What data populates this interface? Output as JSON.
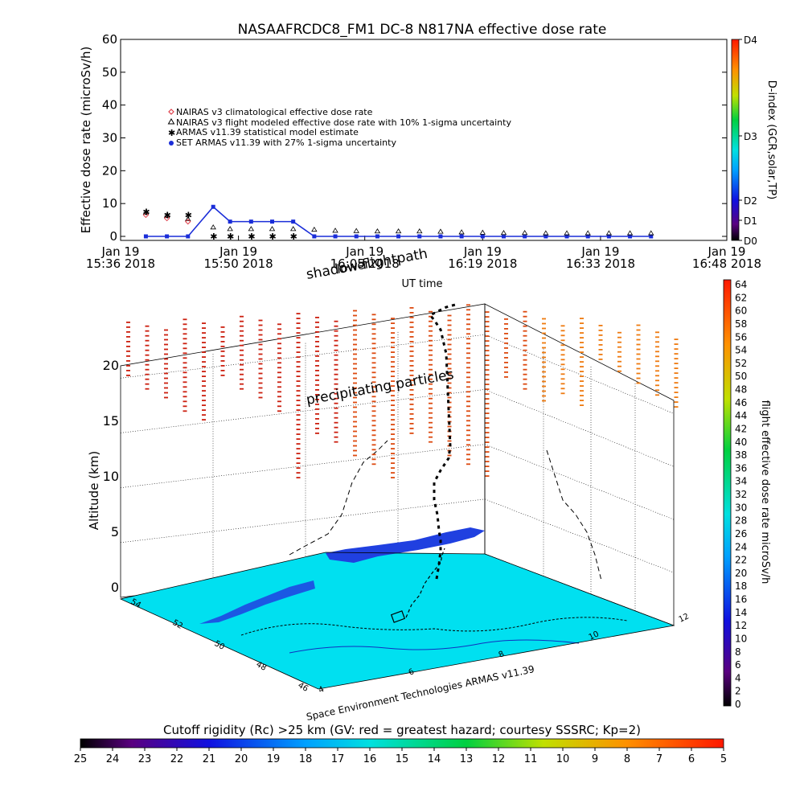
{
  "top_chart": {
    "title": "NASAAFRCDC8_FM1 DC-8    N817NA effective dose rate",
    "ylabel": "Effective dose rate (microSv/h)",
    "xlabel": "UT time",
    "ylim": [
      0,
      60
    ],
    "yticks": [
      "0",
      "10",
      "20",
      "30",
      "40",
      "50",
      "60"
    ],
    "time_range": [
      "15:36",
      "16:48"
    ],
    "xticks": [
      {
        "time": "15:36",
        "line1": "Jan 19",
        "line2": "15:36 2018"
      },
      {
        "time": "15:50",
        "line1": "Jan 19",
        "line2": "15:50 2018"
      },
      {
        "time": "16:05",
        "line1": "Jan 19",
        "line2": "16:05 2018"
      },
      {
        "time": "16:19",
        "line1": "Jan 19",
        "line2": "16:19 2018"
      },
      {
        "time": "16:33",
        "line1": "Jan 19",
        "line2": "16:33 2018"
      },
      {
        "time": "16:48",
        "line1": "Jan 19",
        "line2": "16:48 2018"
      }
    ],
    "legend": [
      {
        "symbol": "diamond",
        "color": "#e0404b",
        "text": "NAIRAS v3 climatological effective dose rate"
      },
      {
        "symbol": "triangle",
        "color": "#000000",
        "text": "NAIRAS v3 flight modeled effective dose rate with 10% 1-sigma uncertainty"
      },
      {
        "symbol": "star",
        "color": "#2ecc40",
        "text": "ARMAS v11.39 statistical model estimate"
      },
      {
        "symbol": "dot",
        "color": "#1a2dd8",
        "text": "SET ARMAS v11.39 with 27% 1-sigma uncertainty"
      }
    ],
    "dindex_bar": {
      "label": "D-index (GCR,solar,TP)",
      "ticks": [
        {
          "label": "D4",
          "v": 1.0
        },
        {
          "label": "D3",
          "v": 0.52
        },
        {
          "label": "D2",
          "v": 0.2
        },
        {
          "label": "D1",
          "v": 0.1
        },
        {
          "label": "D0",
          "v": 0.0
        }
      ]
    }
  },
  "chart_data": [
    {
      "type": "scatter",
      "title": "NASAAFRCDC8_FM1 DC-8    N817NA effective dose rate",
      "xlabel": "UT time",
      "ylabel": "Effective dose rate (microSv/h)",
      "ylim": [
        0,
        60
      ],
      "x_unit": "minutes after 15:36 UT",
      "series": [
        {
          "name": "NAIRAS v3 climatological effective dose rate",
          "x": [
            3,
            5.5,
            8
          ],
          "y": [
            6.5,
            5.5,
            4.5
          ]
        },
        {
          "name": "NAIRAS v3 flight modeled effective dose rate with 10% 1-sigma uncertainty",
          "x": [
            3,
            5.5,
            8,
            11,
            13,
            15.5,
            18,
            20.5,
            23,
            25.5,
            28,
            30.5,
            33,
            35.5,
            38,
            40.5,
            43,
            45.5,
            48,
            50.5,
            53,
            55.5,
            58,
            60.5,
            63
          ],
          "y": [
            6.5,
            5.5,
            4.5,
            2,
            1.5,
            1.5,
            1.5,
            1.5,
            1.3,
            1,
            0.9,
            0.8,
            0.8,
            0.8,
            0.7,
            0.5,
            0.4,
            0.3,
            0.3,
            0.2,
            0.2,
            0.2,
            0.2,
            0.2,
            0.2
          ]
        },
        {
          "name": "ARMAS v11.39 statistical model estimate",
          "x": [
            3,
            5.5,
            8,
            11,
            13,
            15.5,
            18,
            20.5
          ],
          "y": [
            7.5,
            6.5,
            6.5,
            0,
            0,
            0,
            0,
            0
          ]
        },
        {
          "name": "SET ARMAS v11.39 with 27% 1-sigma uncertainty",
          "x": [
            3,
            5.5,
            8,
            11,
            13,
            15.5,
            18,
            20.5,
            23,
            25.5,
            28,
            30.5,
            33,
            35.5,
            38,
            40.5,
            43,
            45.5,
            48,
            50.5,
            53,
            55.5,
            58,
            60.5,
            63
          ],
          "y": [
            0,
            0,
            0,
            9,
            4.5,
            4.5,
            4.5,
            4.5,
            0,
            0,
            0,
            0,
            0,
            0,
            0,
            0,
            0,
            0,
            0,
            0,
            0,
            0,
            0,
            0,
            0
          ]
        }
      ]
    },
    {
      "type": "scatter",
      "title": "",
      "xlabel": "",
      "ylabel": "Altitude (km)",
      "zlim": [
        0,
        20
      ],
      "zticks": [
        "0",
        "5",
        "10",
        "15",
        "20"
      ],
      "lat_ticks": [
        "54",
        "52",
        "50",
        "48",
        "46"
      ],
      "lon_ticks": [
        "4",
        "6",
        "8",
        "10",
        "12"
      ]
    }
  ],
  "lower_chart": {
    "ylabel": "Altitude (km)",
    "annotation_shadow": "shadow flightpath",
    "annotation_lower": "lower",
    "annotation_precip": "precipitating particles",
    "credit": "Space Environment Technologies ARMAS v11.39",
    "rate_bar": {
      "label": "flight effective dose rate microSv/h",
      "ticks": [
        "0",
        "2",
        "4",
        "6",
        "8",
        "10",
        "12",
        "14",
        "16",
        "18",
        "20",
        "22",
        "24",
        "26",
        "28",
        "30",
        "32",
        "34",
        "36",
        "38",
        "40",
        "42",
        "44",
        "46",
        "48",
        "50",
        "52",
        "54",
        "56",
        "58",
        "60",
        "62",
        "64"
      ]
    },
    "ground_color": "#00e0f0",
    "land_color": "#2040e0"
  },
  "cutoff_bar": {
    "title": "Cutoff rigidity (Rc) >25 km (GV: red = greatest hazard; courtesy SSSRC; Kp=2)",
    "ticks": [
      "25",
      "24",
      "23",
      "22",
      "21",
      "20",
      "19",
      "18",
      "17",
      "16",
      "15",
      "14",
      "13",
      "12",
      "11",
      "10",
      "9",
      "8",
      "7",
      "6",
      "5"
    ]
  }
}
